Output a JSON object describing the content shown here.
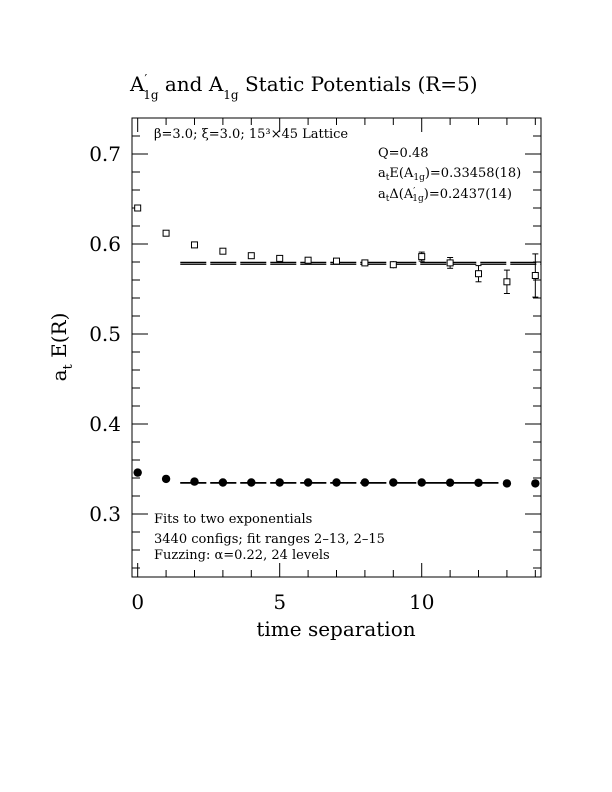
{
  "chart_data": {
    "type": "scatter",
    "title": {
      "prefix": "A",
      "prime": "′",
      "sub1": "1g",
      "middle": " and A",
      "sub2": "1g",
      "suffix": " Static Potentials (R=5)"
    },
    "xlabel": "time separation",
    "ylabel": {
      "main": "a",
      "sub": "t",
      "rest": " E(R)"
    },
    "xlim": [
      -0.2,
      14.2
    ],
    "ylim": [
      0.23,
      0.74
    ],
    "x_ticks": [
      0,
      5,
      10
    ],
    "y_ticks": [
      0.3,
      0.4,
      0.5,
      0.6,
      0.7
    ],
    "x_tick_labels": [
      "0",
      "5",
      "10"
    ],
    "y_tick_labels": [
      "0.3",
      "0.4",
      "0.5",
      "0.6",
      "0.7"
    ],
    "grid": false,
    "series": [
      {
        "marker": "open-square",
        "points": [
          {
            "x": 0,
            "y": 0.64,
            "err": 0.002
          },
          {
            "x": 1,
            "y": 0.612,
            "err": 0.002
          },
          {
            "x": 2,
            "y": 0.599,
            "err": 0.002
          },
          {
            "x": 3,
            "y": 0.592,
            "err": 0.002
          },
          {
            "x": 4,
            "y": 0.587,
            "err": 0.002
          },
          {
            "x": 5,
            "y": 0.584,
            "err": 0.002
          },
          {
            "x": 6,
            "y": 0.582,
            "err": 0.002
          },
          {
            "x": 7,
            "y": 0.581,
            "err": 0.002
          },
          {
            "x": 8,
            "y": 0.579,
            "err": 0.003
          },
          {
            "x": 9,
            "y": 0.577,
            "err": 0.004
          },
          {
            "x": 10,
            "y": 0.586,
            "err": 0.005
          },
          {
            "x": 11,
            "y": 0.579,
            "err": 0.006
          },
          {
            "x": 12,
            "y": 0.567,
            "err": 0.009
          },
          {
            "x": 13,
            "y": 0.558,
            "err": 0.013
          },
          {
            "x": 14,
            "y": 0.565,
            "err": 0.024
          }
        ],
        "fit": {
          "x_from": 1.5,
          "x_to": 14.2,
          "center": 0.5785,
          "lower": 0.5775,
          "upper": 0.5795
        }
      },
      {
        "marker": "filled-circle",
        "points": [
          {
            "x": 0,
            "y": 0.346,
            "err": 0.002
          },
          {
            "x": 1,
            "y": 0.339,
            "err": 0.001
          },
          {
            "x": 2,
            "y": 0.336,
            "err": 0.001
          },
          {
            "x": 3,
            "y": 0.335,
            "err": 0.001
          },
          {
            "x": 4,
            "y": 0.335,
            "err": 0.001
          },
          {
            "x": 5,
            "y": 0.335,
            "err": 0.001
          },
          {
            "x": 6,
            "y": 0.335,
            "err": 0.001
          },
          {
            "x": 7,
            "y": 0.335,
            "err": 0.001
          },
          {
            "x": 8,
            "y": 0.335,
            "err": 0.001
          },
          {
            "x": 9,
            "y": 0.335,
            "err": 0.001
          },
          {
            "x": 10,
            "y": 0.335,
            "err": 0.001
          },
          {
            "x": 11,
            "y": 0.3348,
            "err": 0.001
          },
          {
            "x": 12,
            "y": 0.3347,
            "err": 0.001
          },
          {
            "x": 13,
            "y": 0.334,
            "err": 0.001
          },
          {
            "x": 14,
            "y": 0.334,
            "err": 0.002
          }
        ],
        "fit": {
          "x_from": 1.5,
          "x_to": 12.7,
          "center": 0.33458,
          "lower": 0.3344,
          "upper": 0.3348
        }
      }
    ],
    "annotations": {
      "lattice": "β=3.0; ξ=3.0; 15³×45 Lattice",
      "q": "Q=0.48",
      "energy": {
        "a": "a",
        "t_sub": "t",
        "e": "E(A",
        "sub": "1g",
        "val": ")=0.33458(18)"
      },
      "delta": {
        "a": "a",
        "t_sub": "t",
        "d": "Δ(A",
        "prime": "′",
        "sub": "1g",
        "val": ")=0.2437(14)"
      },
      "fits": "Fits to two exponentials",
      "configs": "3440 configs; fit ranges 2–13, 2–15",
      "fuzzing": "Fuzzing: α=0.22, 24 levels"
    }
  }
}
